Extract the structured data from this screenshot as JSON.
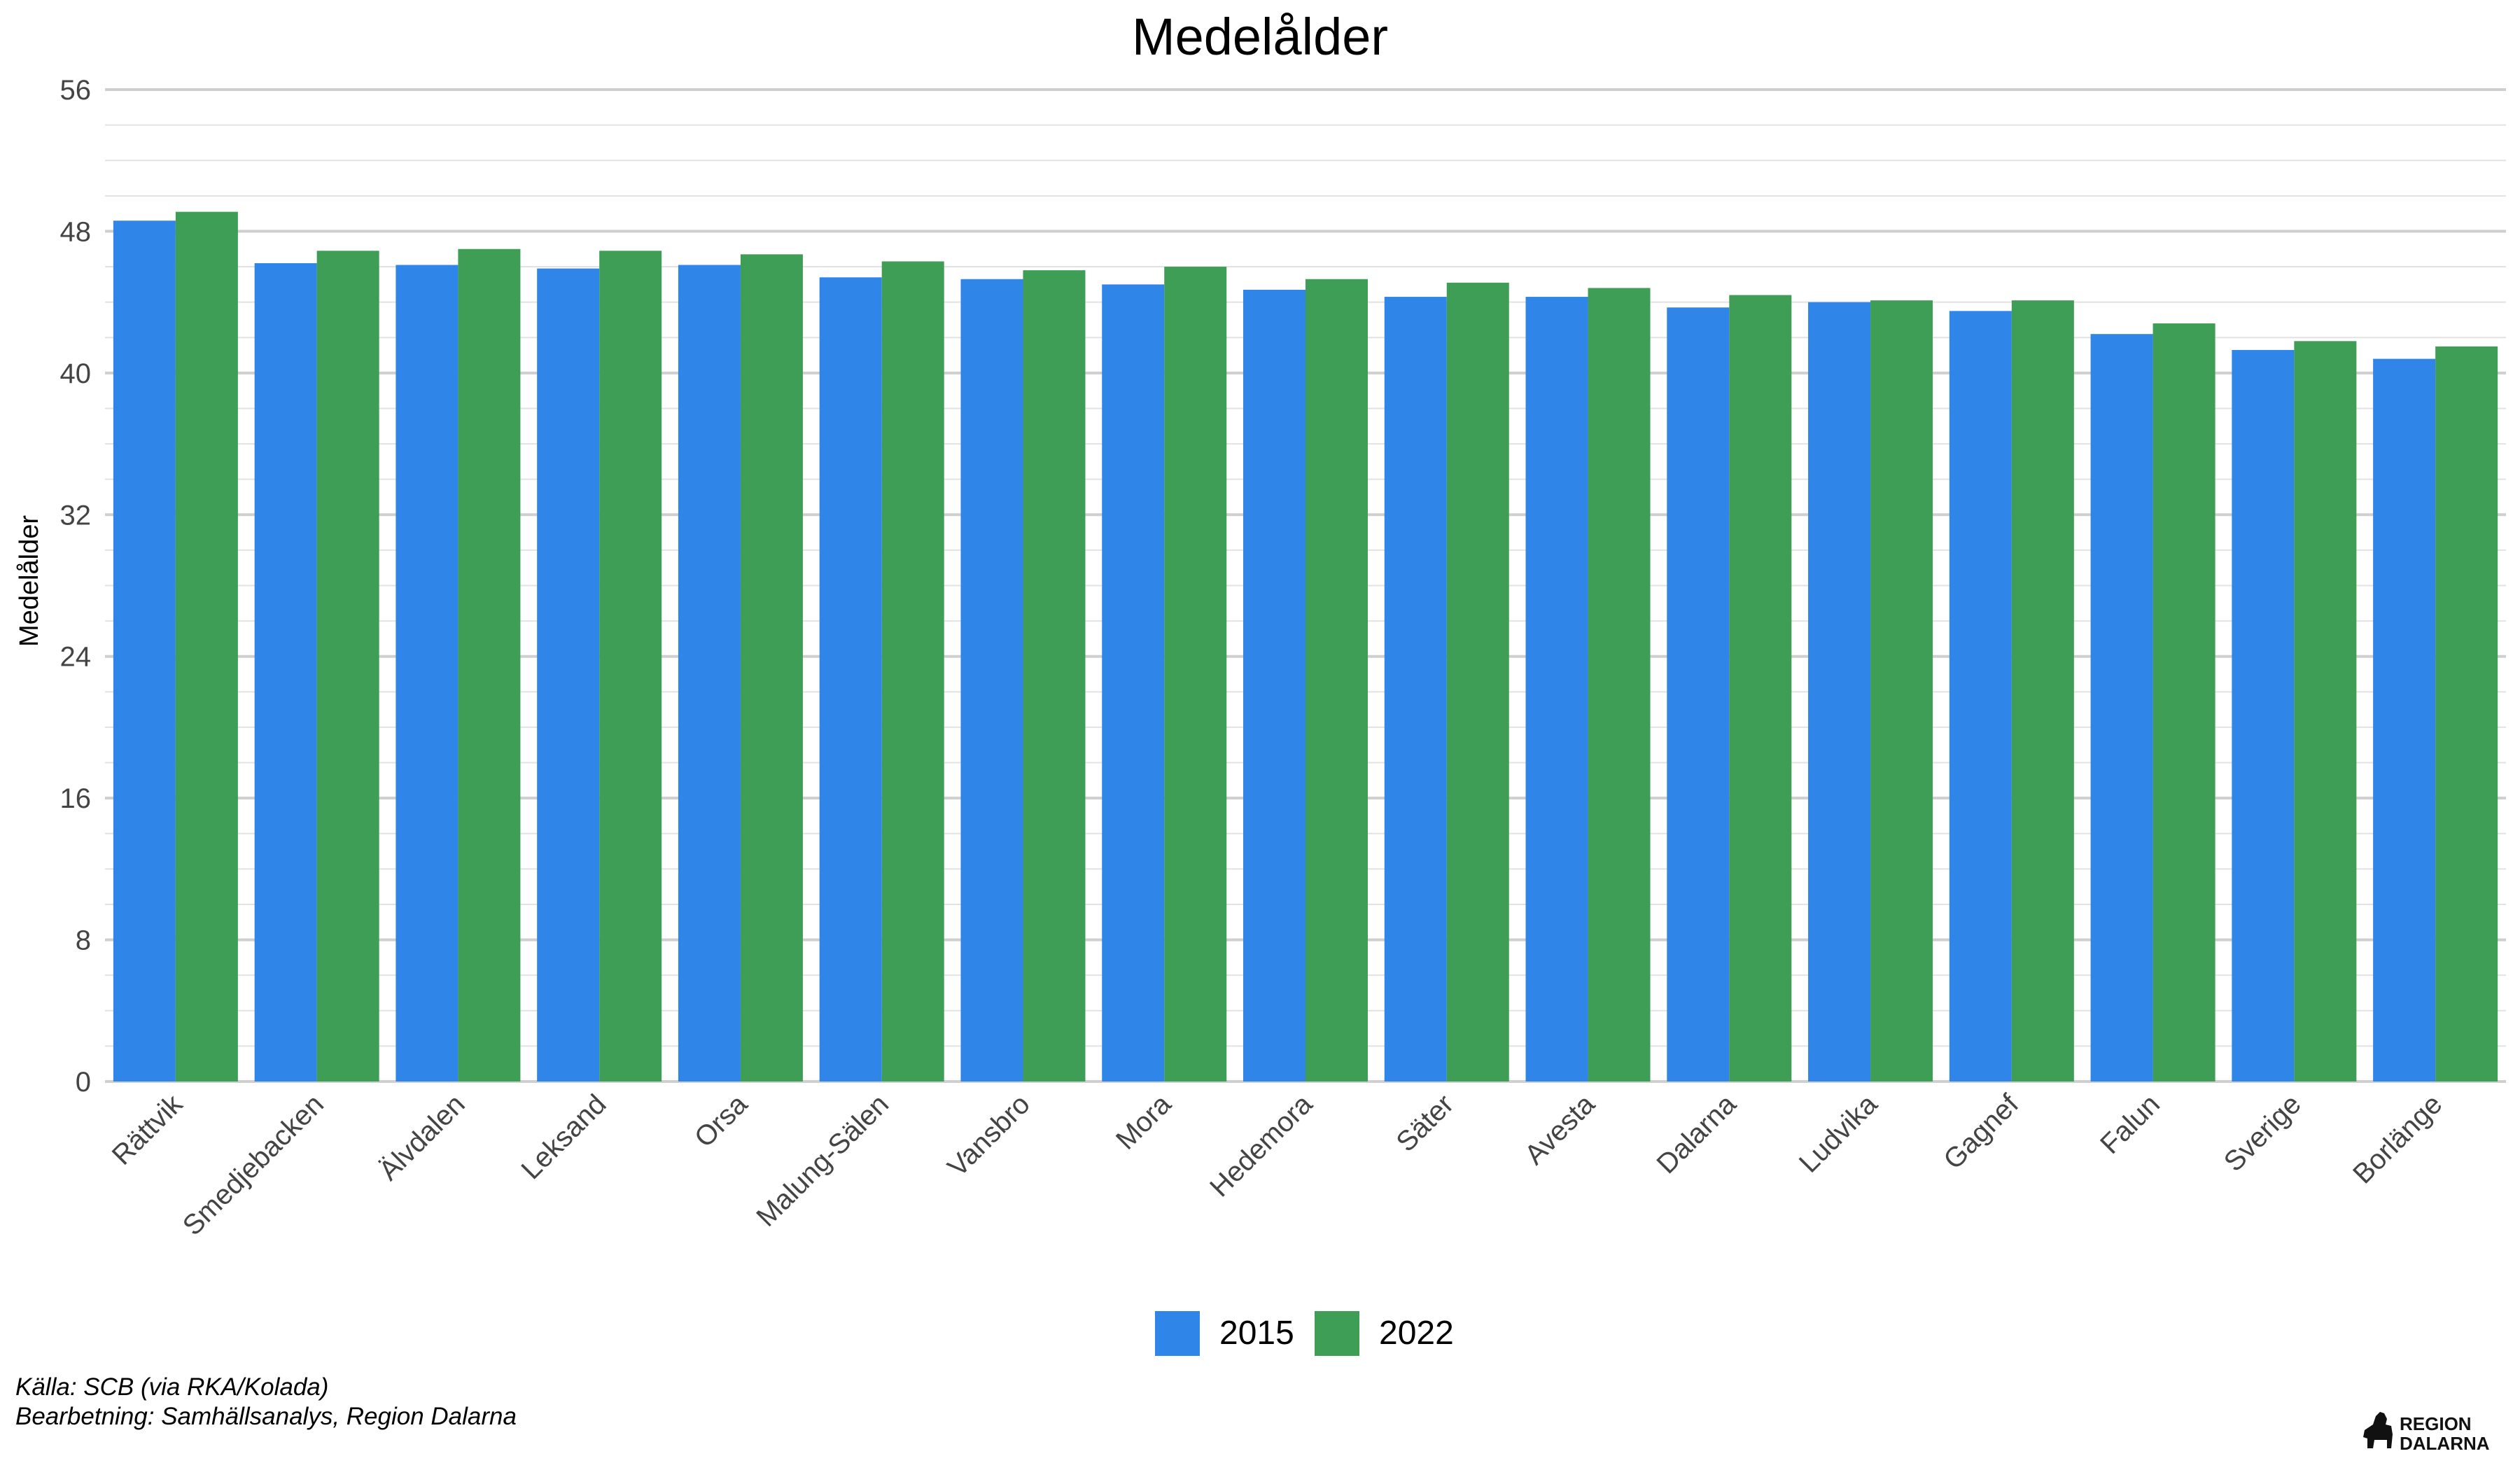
{
  "chart_data": {
    "type": "bar",
    "title": "Medelålder",
    "xlabel": "",
    "ylabel": "Medelålder",
    "ylim": [
      0,
      56
    ],
    "yticks": [
      0,
      8,
      16,
      24,
      32,
      40,
      48,
      56
    ],
    "grid": true,
    "legend_position": "bottom",
    "categories": [
      "Rättvik",
      "Smedjebacken",
      "Älvdalen",
      "Leksand",
      "Orsa",
      "Malung-Sälen",
      "Vansbro",
      "Mora",
      "Hedemora",
      "Säter",
      "Avesta",
      "Dalarna",
      "Ludvika",
      "Gagnef",
      "Falun",
      "Sverige",
      "Borlänge"
    ],
    "series": [
      {
        "name": "2015",
        "color": "#3085E8",
        "values": [
          48.6,
          46.2,
          46.1,
          45.9,
          46.1,
          45.4,
          45.3,
          45.0,
          44.7,
          44.3,
          44.3,
          43.7,
          44.0,
          43.5,
          42.2,
          41.3,
          40.8
        ]
      },
      {
        "name": "2022",
        "color": "#3F9E55",
        "values": [
          49.1,
          46.9,
          47.0,
          46.9,
          46.7,
          46.3,
          45.8,
          46.0,
          45.3,
          45.1,
          44.8,
          44.4,
          44.1,
          44.1,
          42.8,
          41.8,
          41.5
        ]
      }
    ]
  },
  "caption": {
    "source": "Källa: SCB (via RKA/Kolada)",
    "processing": "Bearbetning: Samhällsanalys, Region Dalarna"
  },
  "logo": {
    "line1": "REGION",
    "line2": "DALARNA",
    "icon": "dala-horse-icon"
  }
}
